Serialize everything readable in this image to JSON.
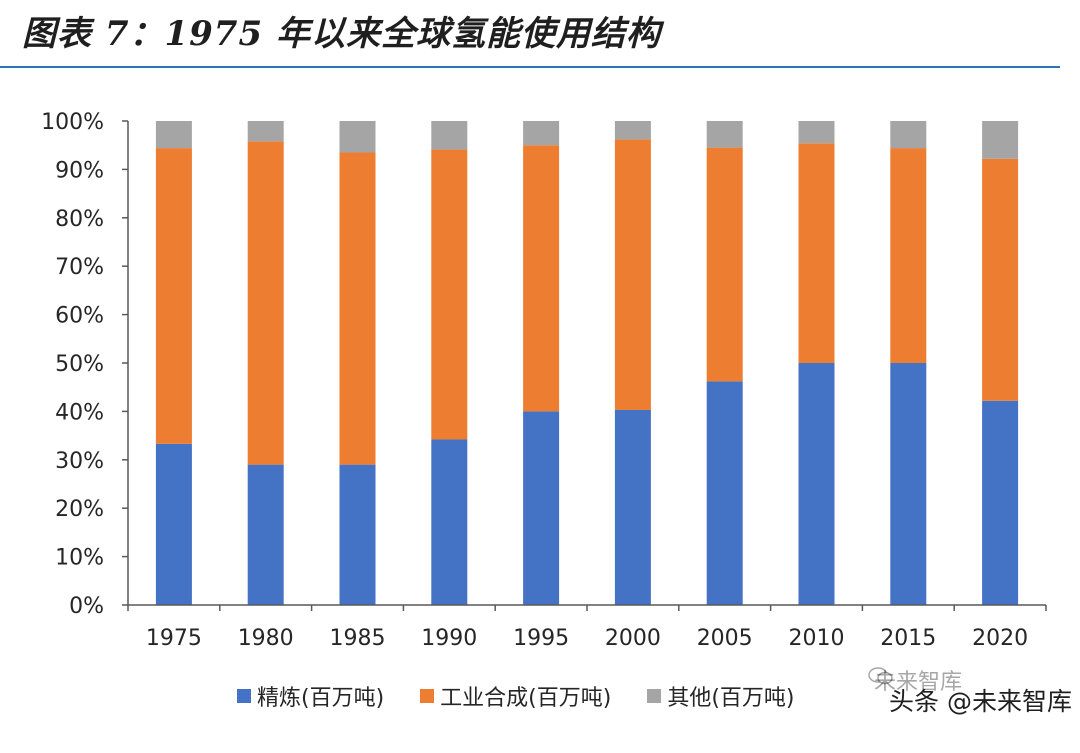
{
  "header": {
    "title": "图表 7：1975 年以来全球氢能使用结构"
  },
  "colors": {
    "refining": "#4472c4",
    "industrial": "#ed7d31",
    "other": "#a5a5a5",
    "rule": "#2e75b6"
  },
  "chart_data": {
    "type": "bar",
    "stacked": true,
    "title": "图表 7：1975 年以来全球氢能使用结构",
    "categories": [
      "1975",
      "1980",
      "1985",
      "1990",
      "1995",
      "2000",
      "2005",
      "2010",
      "2015",
      "2020"
    ],
    "series": [
      {
        "name": "精炼(百万吨)",
        "values": [
          33.3,
          29.0,
          29.0,
          34.2,
          40.0,
          40.3,
          46.2,
          50.0,
          50.0,
          42.2
        ]
      },
      {
        "name": "工业合成(百万吨)",
        "values": [
          61.1,
          66.8,
          64.5,
          59.9,
          55.0,
          55.9,
          48.3,
          45.4,
          44.4,
          50.0
        ]
      },
      {
        "name": "其他(百万吨)",
        "values": [
          5.6,
          4.2,
          6.5,
          5.9,
          5.0,
          3.8,
          5.5,
          4.6,
          5.6,
          7.8
        ]
      }
    ],
    "yticks": [
      "0%",
      "10%",
      "20%",
      "30%",
      "40%",
      "50%",
      "60%",
      "70%",
      "80%",
      "90%",
      "100%"
    ],
    "ylim": [
      0,
      100
    ],
    "xlabel": "",
    "ylabel": "",
    "legend": "bottom"
  },
  "watermark": {
    "logo": "未来智库",
    "text": "头条 @未来智库"
  }
}
